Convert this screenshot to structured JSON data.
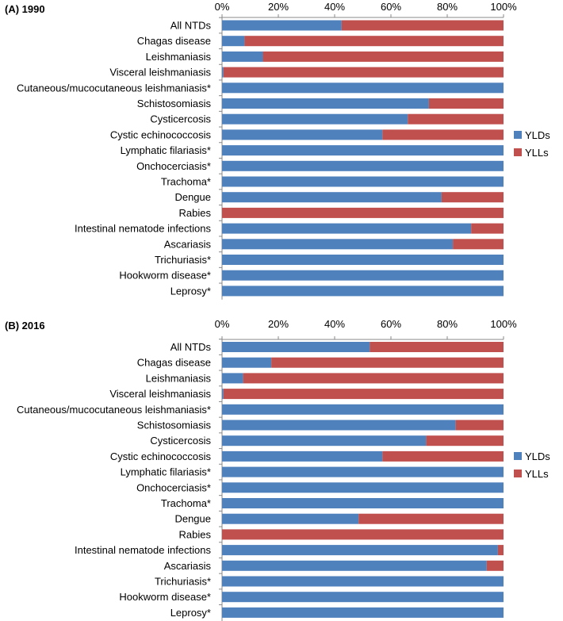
{
  "chart_data": [
    {
      "type": "bar",
      "orientation": "horizontal",
      "stacked": "percent",
      "title": "(A) 1990",
      "xlim": [
        0,
        100
      ],
      "x_ticks": [
        "0%",
        "20%",
        "40%",
        "60%",
        "80%",
        "100%"
      ],
      "x_tick_values": [
        0,
        20,
        40,
        60,
        80,
        100
      ],
      "legend_position": "right",
      "categories": [
        "All NTDs",
        "Chagas disease",
        "Leishmaniasis",
        "Visceral leishmaniasis",
        "Cutaneous/mucocutaneous leishmaniasis*",
        "Schistosomiasis",
        "Cysticercosis",
        "Cystic echinococcosis",
        "Lymphatic filariasis*",
        "Onchocerciasis*",
        "Trachoma*",
        "Dengue",
        "Rabies",
        "Intestinal nematode infections",
        "Ascariasis",
        "Trichuriasis*",
        "Hookworm disease*",
        "Leprosy*"
      ],
      "series": [
        {
          "name": "YLDs",
          "color": "#4f81bd",
          "values": [
            42.5,
            8,
            14.5,
            0.5,
            100,
            73.5,
            66,
            57,
            100,
            100,
            100,
            78,
            0,
            88.5,
            82,
            100,
            100,
            100
          ]
        },
        {
          "name": "YLLs",
          "color": "#c0504d",
          "values": [
            57.5,
            92,
            85.5,
            99.5,
            0,
            26.5,
            34,
            43,
            0,
            0,
            0,
            22,
            100,
            11.5,
            18,
            0,
            0,
            0
          ]
        }
      ]
    },
    {
      "type": "bar",
      "orientation": "horizontal",
      "stacked": "percent",
      "title": "(B) 2016",
      "xlim": [
        0,
        100
      ],
      "x_ticks": [
        "0%",
        "20%",
        "40%",
        "60%",
        "80%",
        "100%"
      ],
      "x_tick_values": [
        0,
        20,
        40,
        60,
        80,
        100
      ],
      "legend_position": "right",
      "categories": [
        "All NTDs",
        "Chagas disease",
        "Leishmaniasis",
        "Visceral leishmaniasis",
        "Cutaneous/mucocutaneous leishmaniasis*",
        "Schistosomiasis",
        "Cysticercosis",
        "Cystic echinococcosis",
        "Lymphatic filariasis*",
        "Onchocerciasis*",
        "Trachoma*",
        "Dengue",
        "Rabies",
        "Intestinal nematode infections",
        "Ascariasis",
        "Trichuriasis*",
        "Hookworm disease*",
        "Leprosy*"
      ],
      "series": [
        {
          "name": "YLDs",
          "color": "#4f81bd",
          "values": [
            52.5,
            17.5,
            7.5,
            0.5,
            100,
            83,
            72.5,
            57,
            100,
            100,
            100,
            48.5,
            0,
            98,
            94,
            100,
            100,
            100
          ]
        },
        {
          "name": "YLLs",
          "color": "#c0504d",
          "values": [
            47.5,
            82.5,
            92.5,
            99.5,
            0,
            17,
            27.5,
            43,
            0,
            0,
            0,
            51.5,
            100,
            2,
            6,
            0,
            0,
            0
          ]
        }
      ]
    }
  ]
}
